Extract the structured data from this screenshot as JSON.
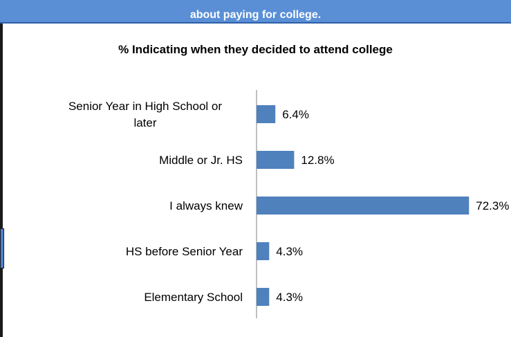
{
  "header": {
    "subtitle_line": "about paying for college."
  },
  "colors": {
    "header_background": "#5a8fd6",
    "bar": "#4f81bd",
    "axis": "#808080"
  },
  "chart_data": {
    "type": "bar",
    "orientation": "horizontal",
    "title": "% Indicating when they decided to attend college",
    "categories": [
      [
        "Senior Year in High School or",
        "later"
      ],
      [
        "Middle or Jr. HS"
      ],
      [
        "I always knew"
      ],
      [
        "HS before Senior Year"
      ],
      [
        "Elementary School"
      ]
    ],
    "values": [
      6.4,
      12.8,
      72.3,
      4.3,
      4.3
    ],
    "value_labels": [
      "6.4%",
      "12.8%",
      "72.3%",
      "4.3%",
      "4.3%"
    ],
    "xlabel": "",
    "ylabel": "",
    "xlim": [
      0,
      80
    ],
    "grid": false,
    "legend": "none"
  }
}
